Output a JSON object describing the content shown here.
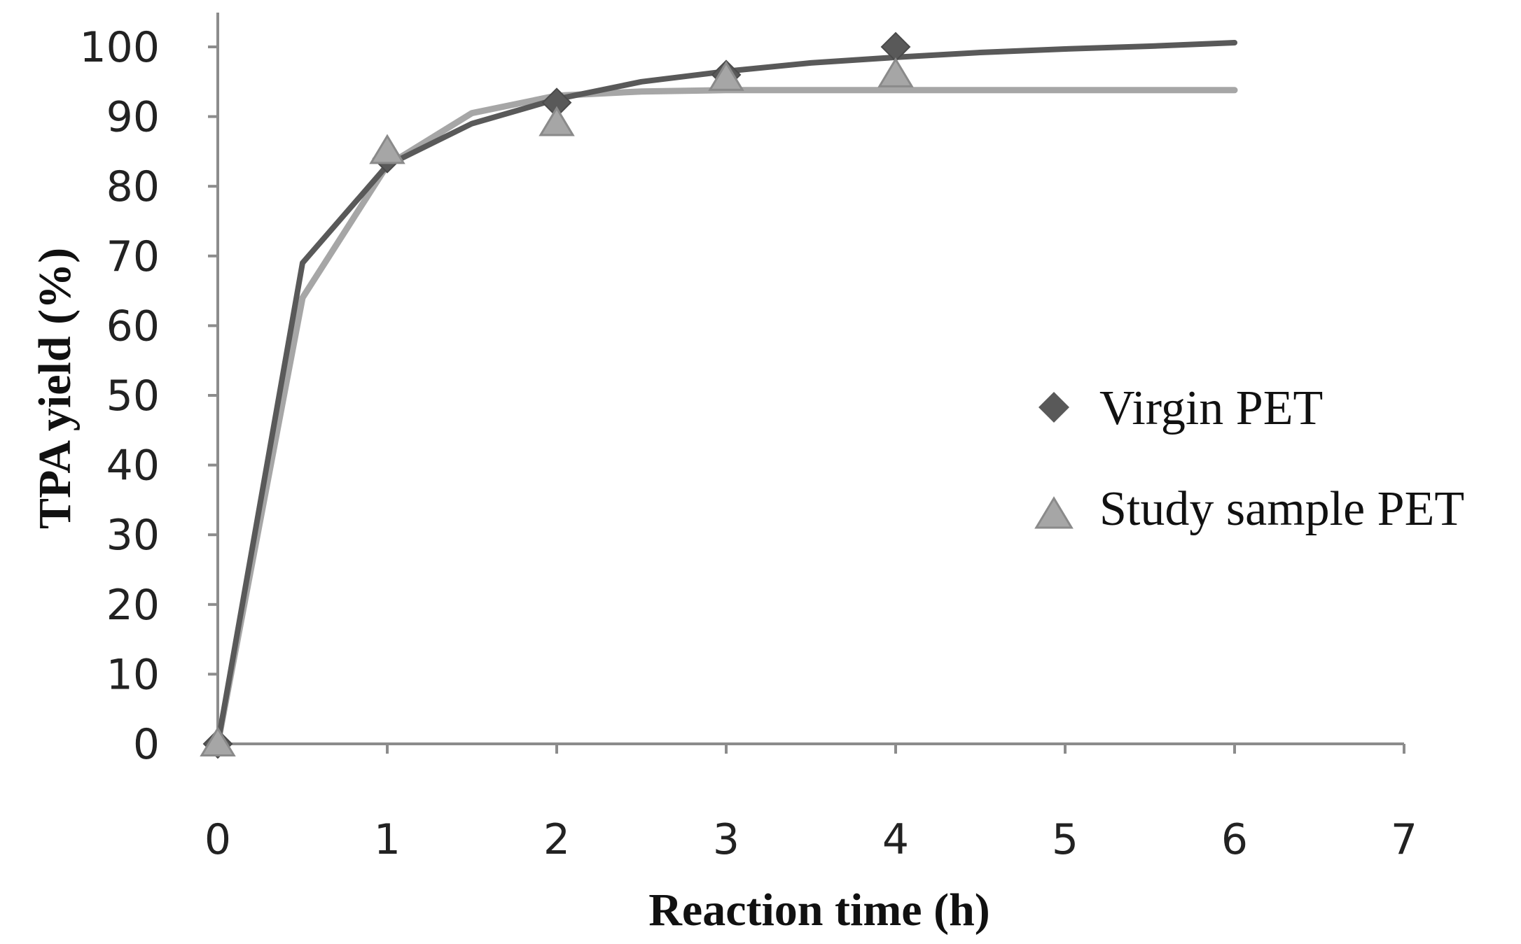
{
  "chart_data": {
    "type": "scatter",
    "title": "",
    "xlabel": "Reaction time (h)",
    "ylabel": "TPA yield (%)",
    "xlim": [
      0,
      7
    ],
    "ylim": [
      0,
      100
    ],
    "xticks": [
      "0",
      "1",
      "2",
      "3",
      "4",
      "5",
      "6",
      "7"
    ],
    "yticks": [
      "0",
      "10",
      "20",
      "30",
      "40",
      "50",
      "60",
      "70",
      "80",
      "90",
      "100"
    ],
    "grid": false,
    "legend_position": "right",
    "series": [
      {
        "name": "Virgin PET",
        "marker": "diamond",
        "color": "#595959",
        "points": [
          {
            "x": 0,
            "y": 0
          },
          {
            "x": 1,
            "y": 84
          },
          {
            "x": 2,
            "y": 92
          },
          {
            "x": 3,
            "y": 96
          },
          {
            "x": 4,
            "y": 100
          }
        ],
        "fit_curve": [
          {
            "x": 0,
            "y": 0
          },
          {
            "x": 0.5,
            "y": 69
          },
          {
            "x": 1,
            "y": 83
          },
          {
            "x": 1.5,
            "y": 89
          },
          {
            "x": 2,
            "y": 92.5
          },
          {
            "x": 2.5,
            "y": 95
          },
          {
            "x": 3,
            "y": 96.5
          },
          {
            "x": 3.5,
            "y": 97.7
          },
          {
            "x": 4,
            "y": 98.5
          },
          {
            "x": 4.5,
            "y": 99.2
          },
          {
            "x": 5,
            "y": 99.7
          },
          {
            "x": 5.5,
            "y": 100.1
          },
          {
            "x": 6,
            "y": 100.6
          }
        ]
      },
      {
        "name": "Study sample PET",
        "marker": "triangle",
        "color": "#a6a6a6",
        "points": [
          {
            "x": 0,
            "y": 0
          },
          {
            "x": 1,
            "y": 85
          },
          {
            "x": 2,
            "y": 89
          },
          {
            "x": 3,
            "y": 95.5
          },
          {
            "x": 4,
            "y": 96
          }
        ],
        "fit_curve": [
          {
            "x": 0,
            "y": 0
          },
          {
            "x": 0.5,
            "y": 64
          },
          {
            "x": 1,
            "y": 83
          },
          {
            "x": 1.5,
            "y": 90.5
          },
          {
            "x": 2,
            "y": 93
          },
          {
            "x": 2.5,
            "y": 93.6
          },
          {
            "x": 3,
            "y": 93.8
          },
          {
            "x": 4,
            "y": 93.8
          },
          {
            "x": 5,
            "y": 93.8
          },
          {
            "x": 6,
            "y": 93.8
          }
        ]
      }
    ]
  }
}
